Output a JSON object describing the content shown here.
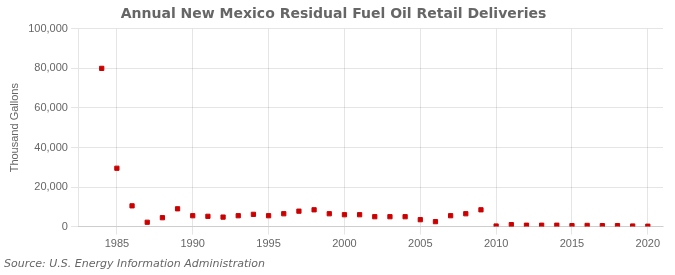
{
  "chart_data": {
    "type": "scatter",
    "title": "Annual New Mexico Residual Fuel Oil Retail Deliveries",
    "ylabel": "Thousand Gallons",
    "annotations": [
      "Source: U.S. Energy Information Administration"
    ],
    "x": [
      1984,
      1985,
      1986,
      1987,
      1988,
      1989,
      1990,
      1991,
      1992,
      1993,
      1994,
      1995,
      1996,
      1997,
      1998,
      1999,
      2000,
      2001,
      2002,
      2003,
      2004,
      2005,
      2006,
      2007,
      2008,
      2009,
      2010,
      2011,
      2012,
      2013,
      2014,
      2015,
      2016,
      2017,
      2018,
      2019,
      2020
    ],
    "values": [
      80000,
      29500,
      10500,
      2200,
      4500,
      9000,
      5500,
      5200,
      4800,
      5500,
      6200,
      5500,
      6500,
      7800,
      8500,
      6500,
      6000,
      6000,
      5000,
      5000,
      5000,
      3500,
      2500,
      5500,
      6500,
      8500,
      300,
      1000,
      700,
      700,
      700,
      500,
      600,
      500,
      500,
      300,
      200
    ],
    "color": "#cc0000",
    "marker": "square",
    "xlim": [
      1982.5,
      2021
    ],
    "xticks": [
      1985,
      1990,
      1995,
      2000,
      2005,
      2010,
      2015,
      2020
    ],
    "ylim": [
      0,
      100000
    ],
    "yticks": [
      0,
      {
        "value": 20000,
        "label": "20,000"
      },
      {
        "value": 40000,
        "label": "40,000"
      },
      {
        "value": 60000,
        "label": "60,000"
      },
      {
        "value": 80000,
        "label": "80,000"
      },
      {
        "value": 100000,
        "label": "100,000"
      }
    ],
    "grid": true
  }
}
